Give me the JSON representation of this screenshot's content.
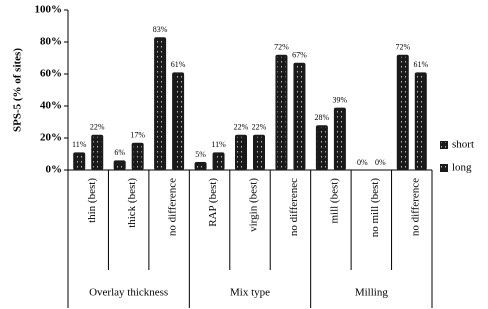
{
  "chart_data": {
    "type": "bar",
    "y_label": "SPS-5 (% of sites)",
    "categories": [
      "thin (best)",
      "thick (best)",
      "no difference",
      "RAP (best)",
      "virgin (best)",
      "no differenec",
      "mill (best)",
      "no mill (best)",
      "no difference"
    ],
    "groups": [
      "Overlay thickness",
      "Mix type",
      "Milling"
    ],
    "series": [
      {
        "name": "short",
        "color": "#1a1a1a",
        "values": [
          11,
          6,
          83,
          5,
          22,
          72,
          28,
          0,
          72
        ],
        "value_labels": [
          "11%",
          "6%",
          "83%",
          "5%",
          "22%",
          "72%",
          "28%",
          "0%",
          "72%"
        ]
      },
      {
        "name": "long",
        "color": "#1a1a1a",
        "values": [
          22,
          17,
          61,
          11,
          22,
          67,
          39,
          0,
          61
        ],
        "value_labels": [
          "22%",
          "17%",
          "61%",
          "11%",
          "22%",
          "67%",
          "39%",
          "0%",
          "61%"
        ]
      }
    ],
    "ylim": [
      0,
      100
    ],
    "yticks": [
      {
        "value": 0,
        "label": "0%"
      },
      {
        "value": 20,
        "label": "20%"
      },
      {
        "value": 40,
        "label": "40%"
      },
      {
        "value": 60,
        "label": "60%"
      },
      {
        "value": 80,
        "label": "80%"
      },
      {
        "value": 100,
        "label": "100%"
      }
    ],
    "legend": "right"
  }
}
